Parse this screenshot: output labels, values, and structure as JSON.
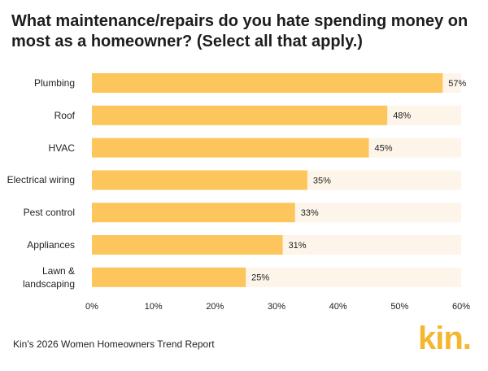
{
  "chart_data": {
    "type": "bar",
    "orientation": "horizontal",
    "title": "What maintenance/repairs do you hate spending money on most as a homeowner? (Select all that apply.)",
    "categories": [
      "Plumbing",
      "Roof",
      "HVAC",
      "Electrical wiring",
      "Pest control",
      "Appliances",
      "Lawn & landscaping"
    ],
    "values": [
      57,
      48,
      45,
      35,
      33,
      31,
      25
    ],
    "value_labels": [
      "57%",
      "48%",
      "45%",
      "35%",
      "33%",
      "31%",
      "25%"
    ],
    "color": "#fcc65c",
    "track_color": "#fdf5e9",
    "xlim": [
      0,
      60
    ],
    "xticks": [
      {
        "value": 0,
        "label": "0%"
      },
      {
        "value": 10,
        "label": "10%"
      },
      {
        "value": 20,
        "label": "20%"
      },
      {
        "value": 30,
        "label": "30%"
      },
      {
        "value": 40,
        "label": "40%"
      },
      {
        "value": 50,
        "label": "50%"
      },
      {
        "value": 60,
        "label": "60%"
      }
    ],
    "footer": "Kin's 2026 Women Homeowners Trend Report",
    "brand": "kin."
  }
}
